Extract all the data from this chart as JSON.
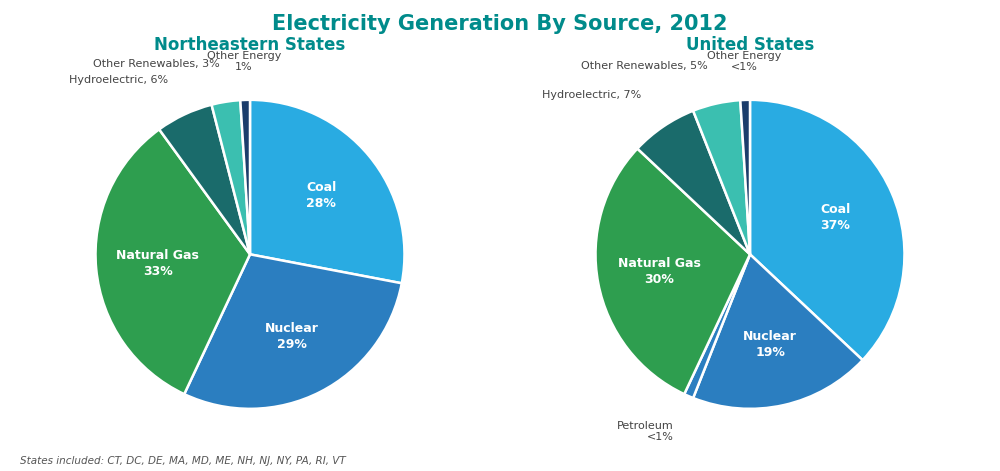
{
  "title": "Electricity Generation By Source, 2012",
  "title_color": "#008B8B",
  "left_title": "Northeastern States",
  "right_title": "United States",
  "subtitle_color": "#008B8B",
  "left_slices": [
    28,
    29,
    33,
    6,
    3,
    1
  ],
  "left_labels_inside": [
    "Coal\n28%",
    "Nuclear\n29%",
    "Natural Gas\n33%",
    "",
    "",
    ""
  ],
  "left_labels_outside": [
    "",
    "",
    "",
    "Hydroelectric, 6%",
    "Other Renewables, 3%",
    "Other Energy\n1%"
  ],
  "left_colors": [
    "#29ABE2",
    "#2B7EC0",
    "#2E9E4F",
    "#1A6B6B",
    "#3BBFB0",
    "#1C3D6B"
  ],
  "right_slices": [
    37,
    19,
    1,
    30,
    7,
    5,
    1
  ],
  "right_labels_inside": [
    "Coal\n37%",
    "Nuclear\n19%",
    "",
    "Natural Gas\n30%",
    "",
    "",
    ""
  ],
  "right_labels_outside": [
    "",
    "",
    "Petroleum\n<1%",
    "",
    "Hydroelectric, 7%",
    "Other Renewables, 5%",
    "Other Energy\n<1%"
  ],
  "right_colors": [
    "#29ABE2",
    "#2B7EC0",
    "#2B7EC0",
    "#2E9E4F",
    "#1A6B6B",
    "#3BBFB0",
    "#1C3D6B"
  ],
  "footer": "States included: CT, DC, DE, MA, MD, ME, NH, NJ, NY, PA, RI, VT",
  "background_color": "#FFFFFF"
}
